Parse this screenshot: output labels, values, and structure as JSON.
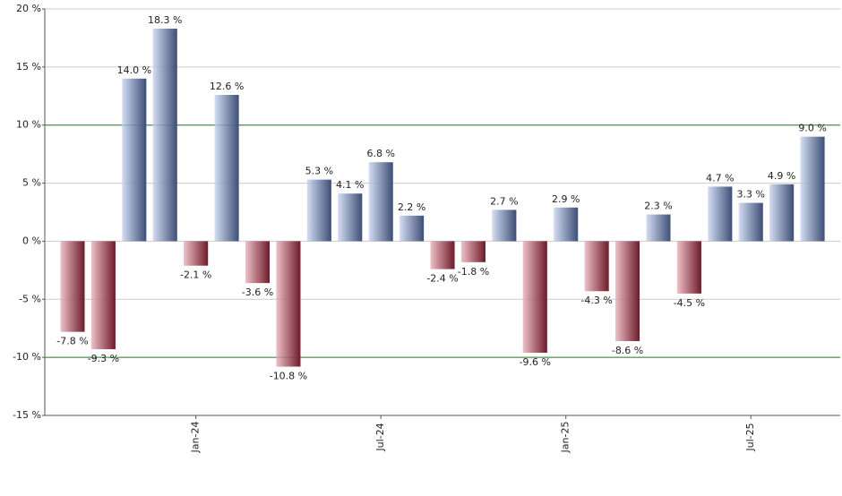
{
  "chart_data": {
    "type": "bar",
    "categories": [
      null,
      null,
      null,
      null,
      "Jan-24",
      null,
      null,
      null,
      null,
      null,
      "Jul-24",
      null,
      null,
      null,
      null,
      null,
      "Jan-25",
      null,
      null,
      null,
      null,
      null,
      "Jul-25",
      null,
      null
    ],
    "values": [
      -7.8,
      -9.3,
      14.0,
      18.3,
      -2.1,
      12.6,
      -3.6,
      -10.8,
      5.3,
      4.1,
      6.8,
      2.2,
      -2.4,
      -1.8,
      2.7,
      -9.6,
      2.9,
      -4.3,
      -8.6,
      2.3,
      -4.5,
      4.7,
      3.3,
      4.9,
      9.0
    ],
    "value_labels": [
      "-7.8 %",
      "-9.3 %",
      "14.0 %",
      "18.3 %",
      "-2.1 %",
      "12.6 %",
      "-3.6 %",
      "-10.8 %",
      "5.3 %",
      "4.1 %",
      "6.8 %",
      "2.2 %",
      "-2.4 %",
      "-1.8 %",
      "2.7 %",
      "-9.6 %",
      "2.9 %",
      "-4.3 %",
      "-8.6 %",
      "2.3 %",
      "-4.5 %",
      "4.7 %",
      "3.3 %",
      "4.9 %",
      "9.0 %"
    ],
    "positive_color": "#6f8fd8",
    "negative_color": "#c8304a",
    "ylim": [
      -15,
      20
    ],
    "yticks": [
      {
        "value": -15,
        "label": "-15 %"
      },
      {
        "value": -10,
        "label": "-10 %"
      },
      {
        "value": -5,
        "label": "-5 %"
      },
      {
        "value": 0,
        "label": "0 %"
      },
      {
        "value": 5,
        "label": "5 %"
      },
      {
        "value": 10,
        "label": "10 %"
      },
      {
        "value": 15,
        "label": "15 %"
      },
      {
        "value": 20,
        "label": "20 %"
      }
    ],
    "grid": true,
    "grid_color": "#cccccc",
    "reference_lines": [
      10,
      -10
    ],
    "reference_line_color": "#2e7d32"
  }
}
